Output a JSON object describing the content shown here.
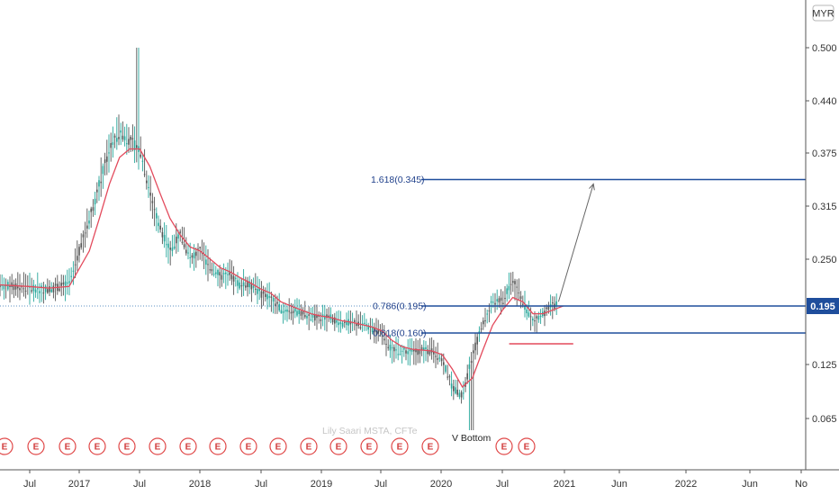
{
  "chart_data": {
    "type": "candlestick",
    "currency": "MYR",
    "watermark": "Lily Saari  MSTA, CFTe",
    "price_label": "0.195",
    "y_ticks": [
      "0.500",
      "0.440",
      "0.375",
      "0.315",
      "0.250",
      "0.125",
      "0.065"
    ],
    "x_ticks": [
      "Jul",
      "2017",
      "Jul",
      "2018",
      "Jul",
      "2019",
      "Jul",
      "2020",
      "Jul",
      "2021",
      "Jun",
      "2022",
      "Jun",
      "No"
    ],
    "ylim": [
      0.03,
      0.525
    ],
    "series": [
      {
        "name": "",
        "x": [
          "2016-05",
          "2016-08",
          "2016-10",
          "2016-12",
          "2017-02",
          "2017-03",
          "2017-04",
          "2017-05",
          "2017-06",
          "2017-07",
          "2017-08",
          "2017-09",
          "2017-10",
          "2017-11",
          "2017-12",
          "2018-01",
          "2018-02",
          "2018-03",
          "2018-04",
          "2018-05",
          "2018-06",
          "2018-07",
          "2018-08",
          "2018-09",
          "2018-10",
          "2018-11",
          "2018-12",
          "2019-01",
          "2019-02",
          "2019-03",
          "2019-04",
          "2019-05",
          "2019-06",
          "2019-07",
          "2019-08",
          "2019-09",
          "2019-10",
          "2019-11",
          "2019-12",
          "2020-01",
          "2020-02",
          "2020-03",
          "2020-04",
          "2020-05",
          "2020-06",
          "2020-07",
          "2020-08",
          "2020-09",
          "2020-10",
          "2020-11",
          "2020-12",
          "2021-01"
        ],
        "close": [
          0.22,
          0.215,
          0.215,
          0.22,
          0.3,
          0.34,
          0.38,
          0.4,
          0.39,
          0.38,
          0.33,
          0.29,
          0.26,
          0.28,
          0.25,
          0.26,
          0.24,
          0.23,
          0.23,
          0.22,
          0.22,
          0.21,
          0.205,
          0.19,
          0.19,
          0.185,
          0.18,
          0.18,
          0.18,
          0.17,
          0.175,
          0.17,
          0.165,
          0.16,
          0.14,
          0.14,
          0.14,
          0.14,
          0.14,
          0.13,
          0.1,
          0.09,
          0.135,
          0.17,
          0.2,
          0.2,
          0.225,
          0.2,
          0.175,
          0.185,
          0.195,
          0.2
        ]
      },
      {
        "name": "",
        "x": [
          "2016-05",
          "2016-08",
          "2016-10",
          "2016-12",
          "2017-02",
          "2017-03",
          "2017-04",
          "2017-05",
          "2017-06",
          "2017-07",
          "2017-08",
          "2017-09",
          "2017-10",
          "2017-11",
          "2017-12",
          "2018-01",
          "2018-02",
          "2018-03",
          "2018-04",
          "2018-05",
          "2018-06",
          "2018-07",
          "2018-08",
          "2018-09",
          "2018-10",
          "2018-11",
          "2018-12",
          "2019-01",
          "2019-02",
          "2019-03",
          "2019-04",
          "2019-05",
          "2019-06",
          "2019-07",
          "2019-08",
          "2019-09",
          "2019-10",
          "2019-11",
          "2019-12",
          "2020-01",
          "2020-02",
          "2020-03",
          "2020-04",
          "2020-05",
          "2020-06",
          "2020-07",
          "2020-08",
          "2020-09",
          "2020-10",
          "2020-11",
          "2020-12",
          "2021-01"
        ],
        "values": [
          0.22,
          0.218,
          0.216,
          0.218,
          0.26,
          0.3,
          0.34,
          0.37,
          0.38,
          0.38,
          0.36,
          0.33,
          0.3,
          0.28,
          0.265,
          0.26,
          0.25,
          0.24,
          0.235,
          0.228,
          0.222,
          0.215,
          0.21,
          0.2,
          0.195,
          0.19,
          0.185,
          0.182,
          0.18,
          0.176,
          0.174,
          0.171,
          0.168,
          0.163,
          0.152,
          0.145,
          0.142,
          0.141,
          0.14,
          0.136,
          0.12,
          0.1,
          0.11,
          0.14,
          0.17,
          0.19,
          0.205,
          0.2,
          0.185,
          0.185,
          0.19,
          0.195
        ]
      }
    ],
    "fib_levels": [
      {
        "label": "1.618(0.345)",
        "value": 0.345
      },
      {
        "label": "0.786(0.195)",
        "value": 0.195
      },
      {
        "label": "0.618(0.160)",
        "value": 0.16
      }
    ],
    "support_level": 0.148,
    "projection": {
      "from": {
        "x": "2020-12",
        "y": 0.2
      },
      "to": {
        "x": "2021-04",
        "y": 0.34
      }
    },
    "annotation": "V Bottom",
    "earnings_markers": {
      "label": "E",
      "count": 17
    },
    "colors": {
      "up": "#26a69a",
      "down": "#555555",
      "ma": "#e34a5c",
      "fib": "#1f4e9c",
      "support": "#e34a5c",
      "price_tag": "#1f4e9c",
      "earnings": "#e04848"
    }
  }
}
